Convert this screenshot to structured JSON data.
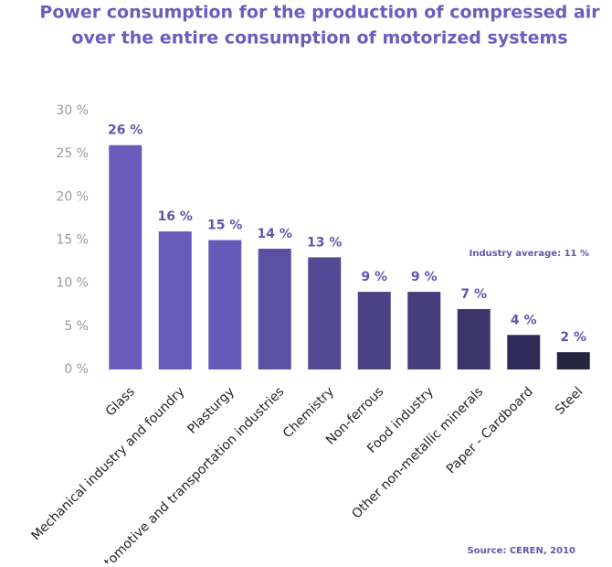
{
  "chart_data": {
    "type": "bar",
    "title": "Power consumption for the production of compressed air",
    "subtitle": "over the entire consumption of motorized systems",
    "categories": [
      "Glass",
      "Mechanical industry and foundry",
      "Plasturgy",
      "Automotive and transportation industries",
      "Chemistry",
      "Non-ferrous",
      "Food industry",
      "Other non-metallic minerals",
      "Paper - Cardboard",
      "Steel"
    ],
    "values": [
      26,
      16,
      15,
      14,
      13,
      9,
      9,
      7,
      4,
      2
    ],
    "value_labels": [
      "26 %",
      "16 %",
      "15 %",
      "14 %",
      "13 %",
      "9 %",
      "9 %",
      "7 %",
      "4 %",
      "2 %"
    ],
    "colors": [
      "#6a5bbd",
      "#685ab9",
      "#6659b8",
      "#5b50a2",
      "#534994",
      "#4a4285",
      "#453d7c",
      "#3c356b",
      "#302b58",
      "#262441"
    ],
    "ylim": [
      0,
      30
    ],
    "yticks": [
      {
        "value": 0,
        "label": "0 %"
      },
      {
        "value": 5,
        "label": "5 %"
      },
      {
        "value": 10,
        "label": "10 %"
      },
      {
        "value": 15,
        "label": "15 %"
      },
      {
        "value": 20,
        "label": "20 %"
      },
      {
        "value": 25,
        "label": "25 %"
      },
      {
        "value": 30,
        "label": "30 %"
      }
    ],
    "annotation": "Industry average: 11 %",
    "source": "Source: CEREN, 2010"
  }
}
